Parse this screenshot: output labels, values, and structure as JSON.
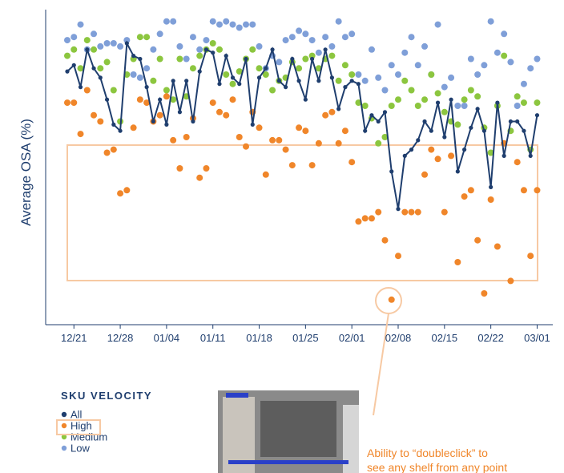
{
  "chart_data": {
    "type": "scatter",
    "ylabel": "Average OSA (%)",
    "legend_title": "SKU VELOCITY",
    "annotation": [
      "Ability to “doubleclick” to",
      "see any shelf from any point"
    ],
    "categories": [
      null,
      "12/21",
      null,
      null,
      null,
      null,
      null,
      null,
      "12/28",
      null,
      null,
      null,
      null,
      null,
      null,
      "01/04",
      null,
      null,
      null,
      null,
      null,
      null,
      "01/11",
      null,
      null,
      null,
      null,
      null,
      null,
      "01/18",
      null,
      null,
      null,
      null,
      null,
      null,
      "01/25",
      null,
      null,
      null,
      null,
      null,
      null,
      "02/01",
      null,
      null,
      null,
      null,
      null,
      null,
      "02/08",
      null,
      null,
      null,
      null,
      null,
      null,
      "02/15",
      null,
      null,
      null,
      null,
      null,
      null,
      "02/22",
      null,
      null,
      null,
      null,
      null,
      null,
      "03/01"
    ],
    "ylim": [
      0,
      100
    ],
    "series": [
      {
        "name": "All",
        "color": "#1f3e6e",
        "line": true,
        "values": [
          81,
          83,
          76,
          88,
          82,
          79,
          72,
          64,
          62,
          90,
          86,
          85,
          76,
          65,
          72,
          64,
          78,
          68,
          78,
          65,
          81,
          88,
          87,
          77,
          86,
          79,
          77,
          85,
          64,
          79,
          82,
          88,
          78,
          76,
          85,
          78,
          72,
          85,
          78,
          88,
          79,
          69,
          76,
          78,
          77,
          62,
          67,
          65,
          68,
          49,
          37,
          54,
          56,
          59,
          65,
          62,
          71,
          60,
          72,
          49,
          56,
          63,
          69,
          62,
          44,
          71,
          54,
          65,
          65,
          62,
          54,
          67
        ]
      },
      {
        "name": "High",
        "color": "#f0862a",
        "line": false,
        "values": [
          71,
          71,
          61,
          75,
          67,
          65,
          55,
          56,
          42,
          43,
          63,
          72,
          71,
          65,
          67,
          73,
          59,
          50,
          60,
          66,
          47,
          50,
          71,
          68,
          67,
          72,
          60,
          57,
          68,
          63,
          48,
          59,
          59,
          56,
          51,
          63,
          62,
          51,
          58,
          67,
          68,
          58,
          62,
          52,
          33,
          34,
          34,
          36,
          27,
          8,
          22,
          36,
          36,
          36,
          48,
          56,
          53,
          36,
          54,
          20,
          41,
          43,
          27,
          10,
          40,
          25,
          58,
          14,
          52,
          43,
          22,
          43
        ]
      },
      {
        "name": "Medium",
        "color": "#8cc63f",
        "line": false,
        "values": [
          86,
          88,
          82,
          91,
          88,
          82,
          84,
          75,
          65,
          80,
          85,
          92,
          92,
          78,
          85,
          75,
          72,
          85,
          73,
          82,
          86,
          88,
          90,
          88,
          80,
          77,
          81,
          85,
          88,
          82,
          80,
          75,
          78,
          79,
          84,
          82,
          85,
          86,
          82,
          85,
          86,
          78,
          83,
          80,
          71,
          70,
          66,
          58,
          60,
          70,
          72,
          78,
          75,
          70,
          72,
          80,
          74,
          68,
          65,
          64,
          72,
          75,
          73,
          63,
          55,
          70,
          86,
          62,
          73,
          71,
          56,
          71
        ]
      },
      {
        "name": "Low",
        "color": "#7f9fd8",
        "line": false,
        "values": [
          91,
          92,
          96,
          88,
          93,
          89,
          90,
          90,
          89,
          91,
          80,
          79,
          82,
          88,
          93,
          97,
          97,
          89,
          85,
          92,
          88,
          91,
          97,
          96,
          97,
          96,
          95,
          96,
          96,
          89,
          82,
          86,
          84,
          91,
          92,
          94,
          93,
          91,
          87,
          92,
          89,
          97,
          92,
          93,
          80,
          78,
          88,
          79,
          75,
          83,
          80,
          87,
          92,
          83,
          89,
          80,
          96,
          76,
          79,
          70,
          70,
          85,
          80,
          83,
          97,
          87,
          93,
          84,
          70,
          77,
          82,
          85
        ]
      }
    ]
  }
}
